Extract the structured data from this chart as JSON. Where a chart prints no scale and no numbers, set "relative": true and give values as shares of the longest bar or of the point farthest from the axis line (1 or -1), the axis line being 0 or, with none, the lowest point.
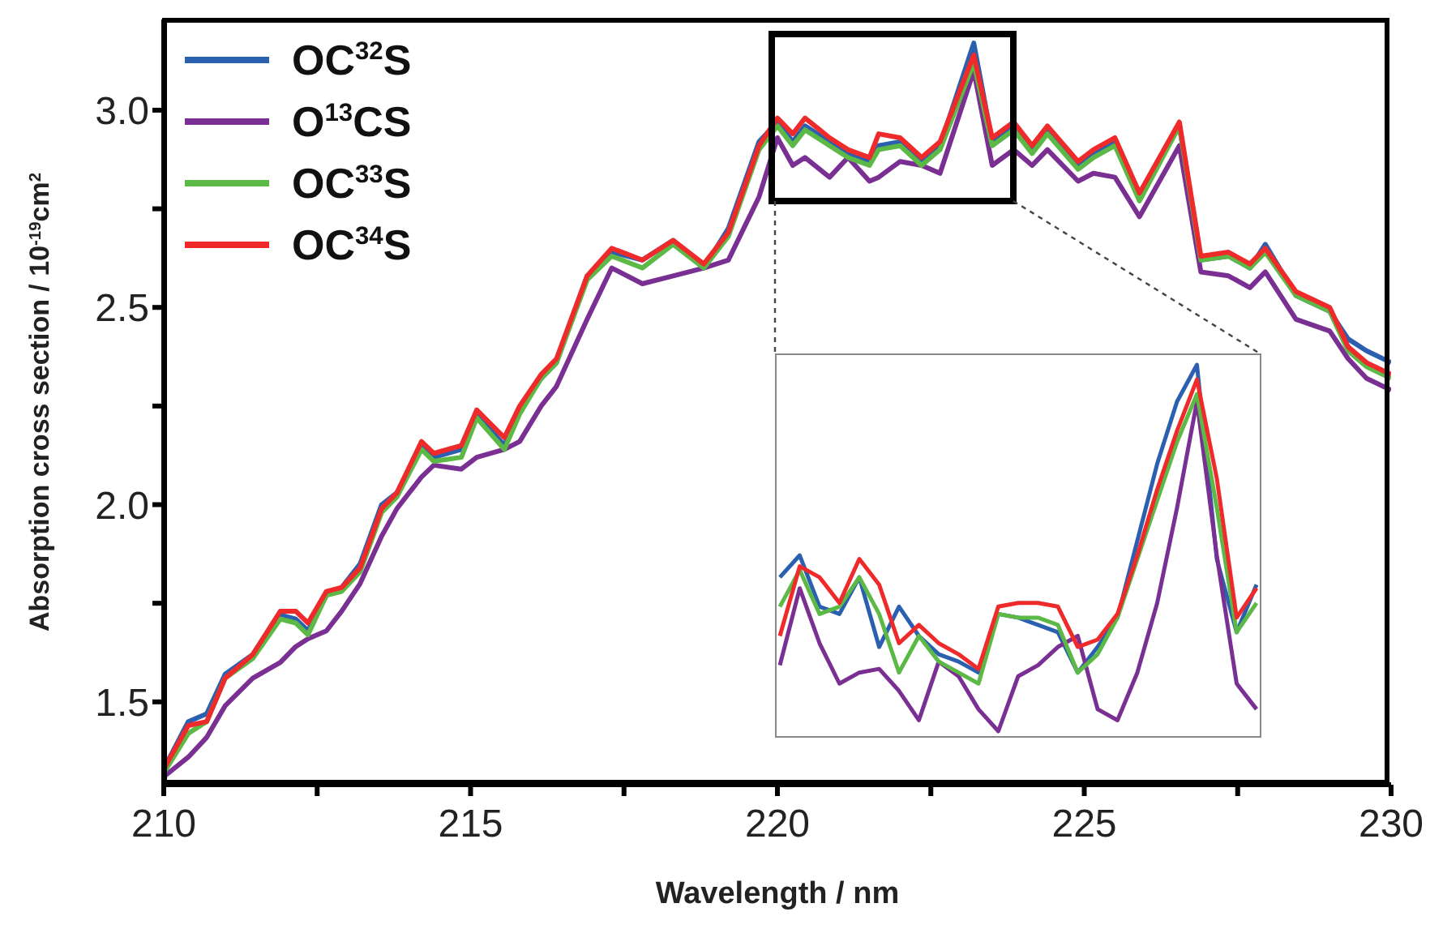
{
  "chart_data": [
    {
      "type": "line",
      "xlabel": "Wavelength / nm",
      "ylabel": "Absorption cross section / 10$^{-19}$cm$^{2}$",
      "x": [
        210,
        210.4,
        210.7,
        211.0,
        211.45,
        211.9,
        212.15,
        212.35,
        212.65,
        212.9,
        213.2,
        213.55,
        213.8,
        214.2,
        214.4,
        214.85,
        215.1,
        215.55,
        215.8,
        216.15,
        216.4,
        216.9,
        217.3,
        217.8,
        218.3,
        218.8,
        219.2,
        219.7,
        220.0,
        220.25,
        220.45,
        220.85,
        221.15,
        221.5,
        221.65,
        222.0,
        222.35,
        222.65,
        223.2,
        223.5,
        223.85,
        224.15,
        224.4,
        224.9,
        225.15,
        225.5,
        225.9,
        226.55,
        226.9,
        227.35,
        227.7,
        227.95,
        228.45,
        229.0,
        229.3,
        229.6,
        230
      ],
      "series": [
        {
          "name": "OC$^{32}$S",
          "color": "#2b5fb0",
          "values": [
            1.33,
            1.45,
            1.47,
            1.57,
            1.62,
            1.72,
            1.71,
            1.68,
            1.77,
            1.79,
            1.85,
            2.0,
            2.03,
            2.15,
            2.12,
            2.14,
            2.23,
            2.15,
            2.24,
            2.32,
            2.36,
            2.58,
            2.64,
            2.62,
            2.67,
            2.6,
            2.7,
            2.92,
            2.97,
            2.92,
            2.96,
            2.92,
            2.89,
            2.87,
            2.91,
            2.92,
            2.87,
            2.91,
            3.17,
            2.92,
            2.96,
            2.9,
            2.95,
            2.86,
            2.89,
            2.92,
            2.78,
            2.96,
            2.62,
            2.63,
            2.6,
            2.66,
            2.53,
            2.49,
            2.42,
            2.39,
            2.36
          ]
        },
        {
          "name": "O$^{13}$CS",
          "color": "#7a2f92",
          "values": [
            1.31,
            1.36,
            1.41,
            1.49,
            1.56,
            1.6,
            1.64,
            1.66,
            1.68,
            1.73,
            1.8,
            1.92,
            1.99,
            2.07,
            2.1,
            2.09,
            2.12,
            2.14,
            2.16,
            2.25,
            2.3,
            2.47,
            2.6,
            2.56,
            2.58,
            2.6,
            2.62,
            2.78,
            2.93,
            2.86,
            2.88,
            2.83,
            2.88,
            2.82,
            2.83,
            2.87,
            2.86,
            2.84,
            3.1,
            2.86,
            2.9,
            2.86,
            2.9,
            2.82,
            2.84,
            2.83,
            2.73,
            2.91,
            2.59,
            2.58,
            2.55,
            2.59,
            2.47,
            2.44,
            2.37,
            2.32,
            2.29
          ]
        },
        {
          "name": "OC$^{33}$S",
          "color": "#5cb946",
          "values": [
            1.32,
            1.42,
            1.45,
            1.56,
            1.61,
            1.71,
            1.7,
            1.67,
            1.77,
            1.78,
            1.83,
            1.98,
            2.02,
            2.14,
            2.11,
            2.12,
            2.22,
            2.14,
            2.23,
            2.32,
            2.36,
            2.57,
            2.63,
            2.6,
            2.66,
            2.6,
            2.68,
            2.9,
            2.96,
            2.91,
            2.95,
            2.91,
            2.88,
            2.86,
            2.9,
            2.91,
            2.86,
            2.9,
            3.12,
            2.91,
            2.95,
            2.89,
            2.94,
            2.85,
            2.88,
            2.91,
            2.77,
            2.96,
            2.62,
            2.63,
            2.6,
            2.64,
            2.53,
            2.49,
            2.39,
            2.35,
            2.32
          ]
        },
        {
          "name": "OC$^{34}$S",
          "color": "#ee2a2a",
          "values": [
            1.33,
            1.44,
            1.45,
            1.56,
            1.62,
            1.73,
            1.73,
            1.7,
            1.78,
            1.79,
            1.84,
            1.99,
            2.03,
            2.16,
            2.13,
            2.15,
            2.24,
            2.17,
            2.25,
            2.33,
            2.37,
            2.58,
            2.65,
            2.62,
            2.67,
            2.61,
            2.69,
            2.91,
            2.98,
            2.94,
            2.98,
            2.93,
            2.9,
            2.88,
            2.94,
            2.93,
            2.88,
            2.92,
            3.14,
            2.93,
            2.97,
            2.91,
            2.96,
            2.87,
            2.9,
            2.93,
            2.79,
            2.97,
            2.63,
            2.64,
            2.61,
            2.65,
            2.54,
            2.5,
            2.4,
            2.36,
            2.33
          ]
        }
      ],
      "xlim": [
        210,
        230
      ],
      "xticks": [
        210,
        {
          "value": 212.5,
          "label": null
        },
        215,
        {
          "value": 217.5,
          "label": null
        },
        220,
        {
          "value": 222.5,
          "label": null
        },
        225,
        {
          "value": 227.5,
          "label": null
        },
        230
      ],
      "ylim": [
        1.29,
        3.23
      ],
      "yticks": [
        1.5,
        {
          "value": 1.75,
          "label": null
        },
        "2.0",
        {
          "value": 2.25,
          "label": null
        },
        2.5,
        {
          "value": 2.75,
          "label": null
        },
        {
          "value": 3.0,
          "label": "3.0"
        }
      ],
      "legend": "top left",
      "marker": "none",
      "line_style": "solid"
    },
    {
      "type": "line",
      "relative": true,
      "tick_labels": false,
      "categories": [
        null,
        null,
        null,
        null,
        null,
        null,
        null,
        null,
        null,
        null,
        null,
        null,
        null,
        null,
        null,
        null,
        null,
        null,
        null,
        null,
        null,
        null,
        null,
        null,
        null
      ],
      "series": [
        {
          "color": "#2b5fb0",
          "values": [
            0.42,
            0.48,
            0.34,
            0.32,
            0.42,
            0.23,
            0.34,
            0.26,
            0.21,
            0.19,
            0.16,
            0.32,
            0.31,
            0.29,
            0.27,
            0.16,
            0.23,
            0.31,
            0.52,
            0.73,
            0.9,
            1,
            0.47,
            0.27,
            0.4
          ]
        },
        {
          "color": "#7a2f92",
          "values": [
            0.18,
            0.39,
            0.24,
            0.13,
            0.16,
            0.17,
            0.11,
            0.03,
            0.19,
            0.15,
            0.06,
            0,
            0.15,
            0.18,
            0.23,
            0.26,
            0.06,
            0.03,
            0.16,
            0.35,
            0.61,
            0.9,
            0.48,
            0.13,
            0.06
          ]
        },
        {
          "color": "#5cb946",
          "values": [
            0.34,
            0.44,
            0.32,
            0.34,
            0.42,
            0.32,
            0.16,
            0.26,
            0.19,
            0.16,
            0.13,
            0.32,
            0.31,
            0.31,
            0.29,
            0.16,
            0.21,
            0.31,
            0.47,
            0.63,
            0.79,
            0.92,
            0.61,
            0.27,
            0.35
          ]
        },
        {
          "color": "#ee2a2a",
          "values": [
            0.26,
            0.45,
            0.42,
            0.35,
            0.47,
            0.4,
            0.24,
            0.29,
            0.24,
            0.21,
            0.17,
            0.34,
            0.35,
            0.35,
            0.34,
            0.23,
            0.25,
            0.32,
            0.48,
            0.66,
            0.82,
            0.96,
            0.69,
            0.31,
            0.39
          ]
        }
      ],
      "marker": "none",
      "line_style": "solid"
    }
  ]
}
